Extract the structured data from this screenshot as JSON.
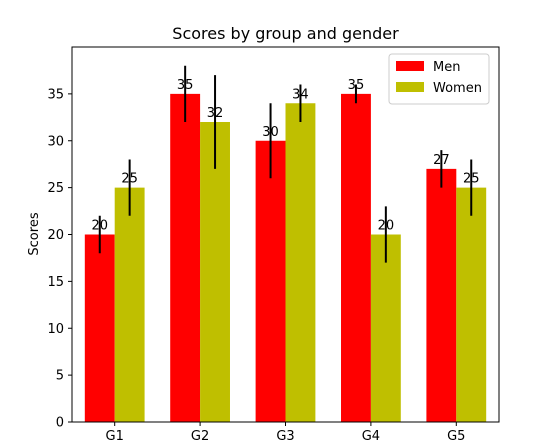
{
  "chart_data": {
    "type": "bar",
    "title": "Scores by group and gender",
    "xlabel": "",
    "ylabel": "Scores",
    "categories": [
      "G1",
      "G2",
      "G3",
      "G4",
      "G5"
    ],
    "series": [
      {
        "name": "Men",
        "values": [
          20,
          35,
          30,
          35,
          27
        ],
        "errors": [
          2,
          3,
          4,
          1,
          2
        ],
        "color": "#ff0000"
      },
      {
        "name": "Women",
        "values": [
          25,
          32,
          34,
          20,
          25
        ],
        "errors": [
          3,
          5,
          2,
          3,
          3
        ],
        "color": "#bfbf00"
      }
    ],
    "ylim": [
      0,
      40
    ],
    "yticks": [
      0,
      5,
      10,
      15,
      20,
      25,
      30,
      35
    ],
    "legend": "top-right",
    "grid": false
  }
}
